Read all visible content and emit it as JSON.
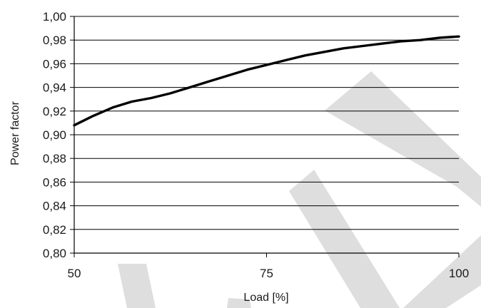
{
  "watermark": {
    "text": "OUT",
    "color": "#dedede"
  },
  "chart_data": {
    "type": "line",
    "title": "",
    "xlabel": "Load [%]",
    "ylabel": "Power factor",
    "xlim": [
      50,
      100
    ],
    "ylim": [
      0.8,
      1.0
    ],
    "x_ticks": [
      50,
      75,
      100
    ],
    "x_tick_labels": [
      "50",
      "75",
      "100"
    ],
    "y_ticks": [
      0.8,
      0.82,
      0.84,
      0.86,
      0.88,
      0.9,
      0.92,
      0.94,
      0.96,
      0.98,
      1.0
    ],
    "y_tick_labels": [
      "0,80",
      "0,82",
      "0,84",
      "0,86",
      "0,88",
      "0,90",
      "0,92",
      "0,94",
      "0,96",
      "0,98",
      "1,00"
    ],
    "grid": {
      "horizontal": true,
      "vertical": false
    },
    "legend": "none",
    "series": [
      {
        "color": "#000000",
        "x": [
          50,
          52.5,
          55,
          57.5,
          60,
          62.5,
          65,
          67.5,
          70,
          72.5,
          75,
          77.5,
          80,
          82.5,
          85,
          87.5,
          90,
          92.5,
          95,
          97.5,
          100
        ],
        "y": [
          0.908,
          0.916,
          0.923,
          0.928,
          0.931,
          0.935,
          0.94,
          0.945,
          0.95,
          0.955,
          0.959,
          0.963,
          0.967,
          0.97,
          0.973,
          0.975,
          0.977,
          0.979,
          0.98,
          0.982,
          0.983
        ]
      }
    ]
  }
}
